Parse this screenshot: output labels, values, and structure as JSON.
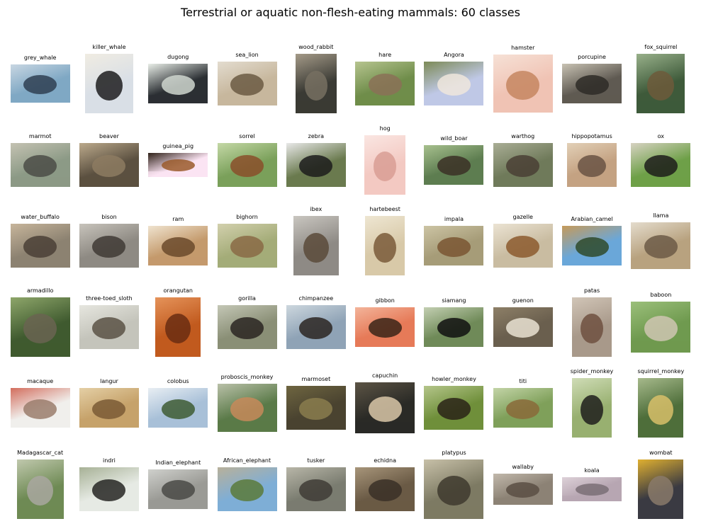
{
  "title": "Terrestrial or aquatic non-flesh-eating mammals: 60 classes",
  "classes": [
    {
      "label": "grey_whale",
      "colors": [
        "#7fa8c4",
        "#2f3f52",
        "#c8d6e2"
      ]
    },
    {
      "label": "killer_whale",
      "colors": [
        "#d9dfe6",
        "#1d1d1f",
        "#f0ece2"
      ]
    },
    {
      "label": "dugong",
      "colors": [
        "#2b2f33",
        "#cfd6cf",
        "#e9eee8"
      ]
    },
    {
      "label": "sea_lion",
      "colors": [
        "#c7b79d",
        "#6b5b43",
        "#e3dccf"
      ]
    },
    {
      "label": "wood_rabbit",
      "colors": [
        "#3a3a34",
        "#777061",
        "#a49a88"
      ]
    },
    {
      "label": "hare",
      "colors": [
        "#6f8d4a",
        "#8b7157",
        "#b6c48f"
      ]
    },
    {
      "label": "Angora",
      "colors": [
        "#bfc8e6",
        "#efe6dc",
        "#7c8a56"
      ]
    },
    {
      "label": "hamster",
      "colors": [
        "#f0c3b4",
        "#c68660",
        "#f6e1d6"
      ]
    },
    {
      "label": "porcupine",
      "colors": [
        "#5f5a52",
        "#2e2b27",
        "#c8c2b3"
      ]
    },
    {
      "label": "fox_squirrel",
      "colors": [
        "#3e5a3a",
        "#6d5a3b",
        "#98b08a"
      ]
    },
    {
      "label": "marmot",
      "colors": [
        "#8c9a86",
        "#4b4c46",
        "#c4c2b2"
      ]
    },
    {
      "label": "beaver",
      "colors": [
        "#5b5040",
        "#8d7b61",
        "#bba98b"
      ]
    },
    {
      "label": "guinea_pig",
      "colors": [
        "#fbe4f3",
        "#9a5a2a",
        "#2f2118"
      ]
    },
    {
      "label": "sorrel",
      "colors": [
        "#7aa05a",
        "#8a4f2a",
        "#c4d8a6"
      ]
    },
    {
      "label": "zebra",
      "colors": [
        "#6a7a4e",
        "#1c1c1c",
        "#e8e8e8"
      ]
    },
    {
      "label": "hog",
      "colors": [
        "#f3c9c2",
        "#d89e94",
        "#fae6e2"
      ]
    },
    {
      "label": "wild_boar",
      "colors": [
        "#5d7d50",
        "#3b3026",
        "#a7c08e"
      ]
    },
    {
      "label": "warthog",
      "colors": [
        "#6f7a5a",
        "#4a3f35",
        "#a9ad95"
      ]
    },
    {
      "label": "hippopotamus",
      "colors": [
        "#c4a282",
        "#6a5344",
        "#e2d0b7"
      ]
    },
    {
      "label": "ox",
      "colors": [
        "#6ea048",
        "#1d1d1b",
        "#d7d2c2"
      ]
    },
    {
      "label": "water_buffalo",
      "colors": [
        "#8c8271",
        "#4a4036",
        "#c7b59b"
      ]
    },
    {
      "label": "bison",
      "colors": [
        "#8e8a83",
        "#3f3a35",
        "#c7c3bb"
      ]
    },
    {
      "label": "ram",
      "colors": [
        "#c49a6c",
        "#6b4a2b",
        "#efe3cf"
      ]
    },
    {
      "label": "bighorn",
      "colors": [
        "#a4ac78",
        "#8a6a45",
        "#d2d0ad"
      ]
    },
    {
      "label": "ibex",
      "colors": [
        "#8e8a85",
        "#5a4a3a",
        "#c9c6c0"
      ]
    },
    {
      "label": "hartebeest",
      "colors": [
        "#d8c9a8",
        "#7a5a3a",
        "#eee6d2"
      ]
    },
    {
      "label": "impala",
      "colors": [
        "#a69c78",
        "#7a5632",
        "#ccc4a4"
      ]
    },
    {
      "label": "gazelle",
      "colors": [
        "#c9bca1",
        "#8c5a2e",
        "#ebe3d3"
      ]
    },
    {
      "label": "Arabian_camel",
      "colors": [
        "#6aa7d9",
        "#2f4a2a",
        "#c69a5a"
      ]
    },
    {
      "label": "llama",
      "colors": [
        "#b8a27f",
        "#6c5a47",
        "#e4dccd"
      ]
    },
    {
      "label": "armadillo",
      "colors": [
        "#3f5a2f",
        "#6a6451",
        "#8ea66a"
      ]
    },
    {
      "label": "three-toed_sloth",
      "colors": [
        "#c4c4bb",
        "#5b5245",
        "#e6e6df"
      ]
    },
    {
      "label": "orangutan",
      "colors": [
        "#c15a1e",
        "#6a2d12",
        "#e5935a"
      ]
    },
    {
      "label": "gorilla",
      "colors": [
        "#8a8f76",
        "#2a2622",
        "#c4c7b6"
      ]
    },
    {
      "label": "chimpanzee",
      "colors": [
        "#8fa3b6",
        "#2b2622",
        "#cdd7de"
      ]
    },
    {
      "label": "gibbon",
      "colors": [
        "#e67a58",
        "#3a2518",
        "#f3b49a"
      ]
    },
    {
      "label": "siamang",
      "colors": [
        "#6f8a58",
        "#111111",
        "#c3cfb2"
      ]
    },
    {
      "label": "guenon",
      "colors": [
        "#6a5f4e",
        "#e9e2d2",
        "#8d7f67"
      ]
    },
    {
      "label": "patas",
      "colors": [
        "#a8998a",
        "#6e5040",
        "#d1c5b7"
      ]
    },
    {
      "label": "baboon",
      "colors": [
        "#6f9a4f",
        "#cfc6b2",
        "#9bbf7a"
      ]
    },
    {
      "label": "macaque",
      "colors": [
        "#f0efec",
        "#9a7c6c",
        "#d36e5e"
      ]
    },
    {
      "label": "langur",
      "colors": [
        "#c6a26a",
        "#7a5a35",
        "#e4cfa5"
      ]
    },
    {
      "label": "colobus",
      "colors": [
        "#a8c0d8",
        "#3e5c34",
        "#e8eef3"
      ]
    },
    {
      "label": "proboscis_monkey",
      "colors": [
        "#5a7a48",
        "#c78a5a",
        "#b9c0a8"
      ]
    },
    {
      "label": "marmoset",
      "colors": [
        "#4a4330",
        "#8a7d4e",
        "#6e6540"
      ]
    },
    {
      "label": "capuchin",
      "colors": [
        "#2a2a26",
        "#d9c7a8",
        "#5c5445"
      ]
    },
    {
      "label": "howler_monkey",
      "colors": [
        "#6f8f3a",
        "#2a2318",
        "#b4c58a"
      ]
    },
    {
      "label": "titi",
      "colors": [
        "#7fa05a",
        "#8a6a3a",
        "#c3d4a7"
      ]
    },
    {
      "label": "spider_monkey",
      "colors": [
        "#98b070",
        "#1f1f1c",
        "#cfdcb6"
      ]
    },
    {
      "label": "squirrel_monkey",
      "colors": [
        "#4e6e3a",
        "#d8c06a",
        "#a6b98b"
      ]
    },
    {
      "label": "Madagascar_cat",
      "colors": [
        "#6e8a54",
        "#a9a7a0",
        "#c0c8ad"
      ]
    },
    {
      "label": "indri",
      "colors": [
        "#e6eae4",
        "#262623",
        "#a7b196"
      ]
    },
    {
      "label": "Indian_elephant",
      "colors": [
        "#9a9a95",
        "#4a4a46",
        "#cfd0cc"
      ]
    },
    {
      "label": "African_elephant",
      "colors": [
        "#7eaed6",
        "#5a7a3a",
        "#b8b09a"
      ]
    },
    {
      "label": "tusker",
      "colors": [
        "#7a7c70",
        "#3f3c36",
        "#b8b6a8"
      ]
    },
    {
      "label": "echidna",
      "colors": [
        "#6a5a45",
        "#3a3027",
        "#a7957a"
      ]
    },
    {
      "label": "platypus",
      "colors": [
        "#7d7a63",
        "#3e3a2e",
        "#c7c0a8"
      ]
    },
    {
      "label": "wallaby",
      "colors": [
        "#8c8275",
        "#5a4f44",
        "#c1b8ab"
      ]
    },
    {
      "label": "koala",
      "colors": [
        "#b7a6b2",
        "#7a6f76",
        "#ddd1d8"
      ]
    },
    {
      "label": "wombat",
      "colors": [
        "#3a3a42",
        "#8a7a6a",
        "#e0b030"
      ]
    }
  ]
}
